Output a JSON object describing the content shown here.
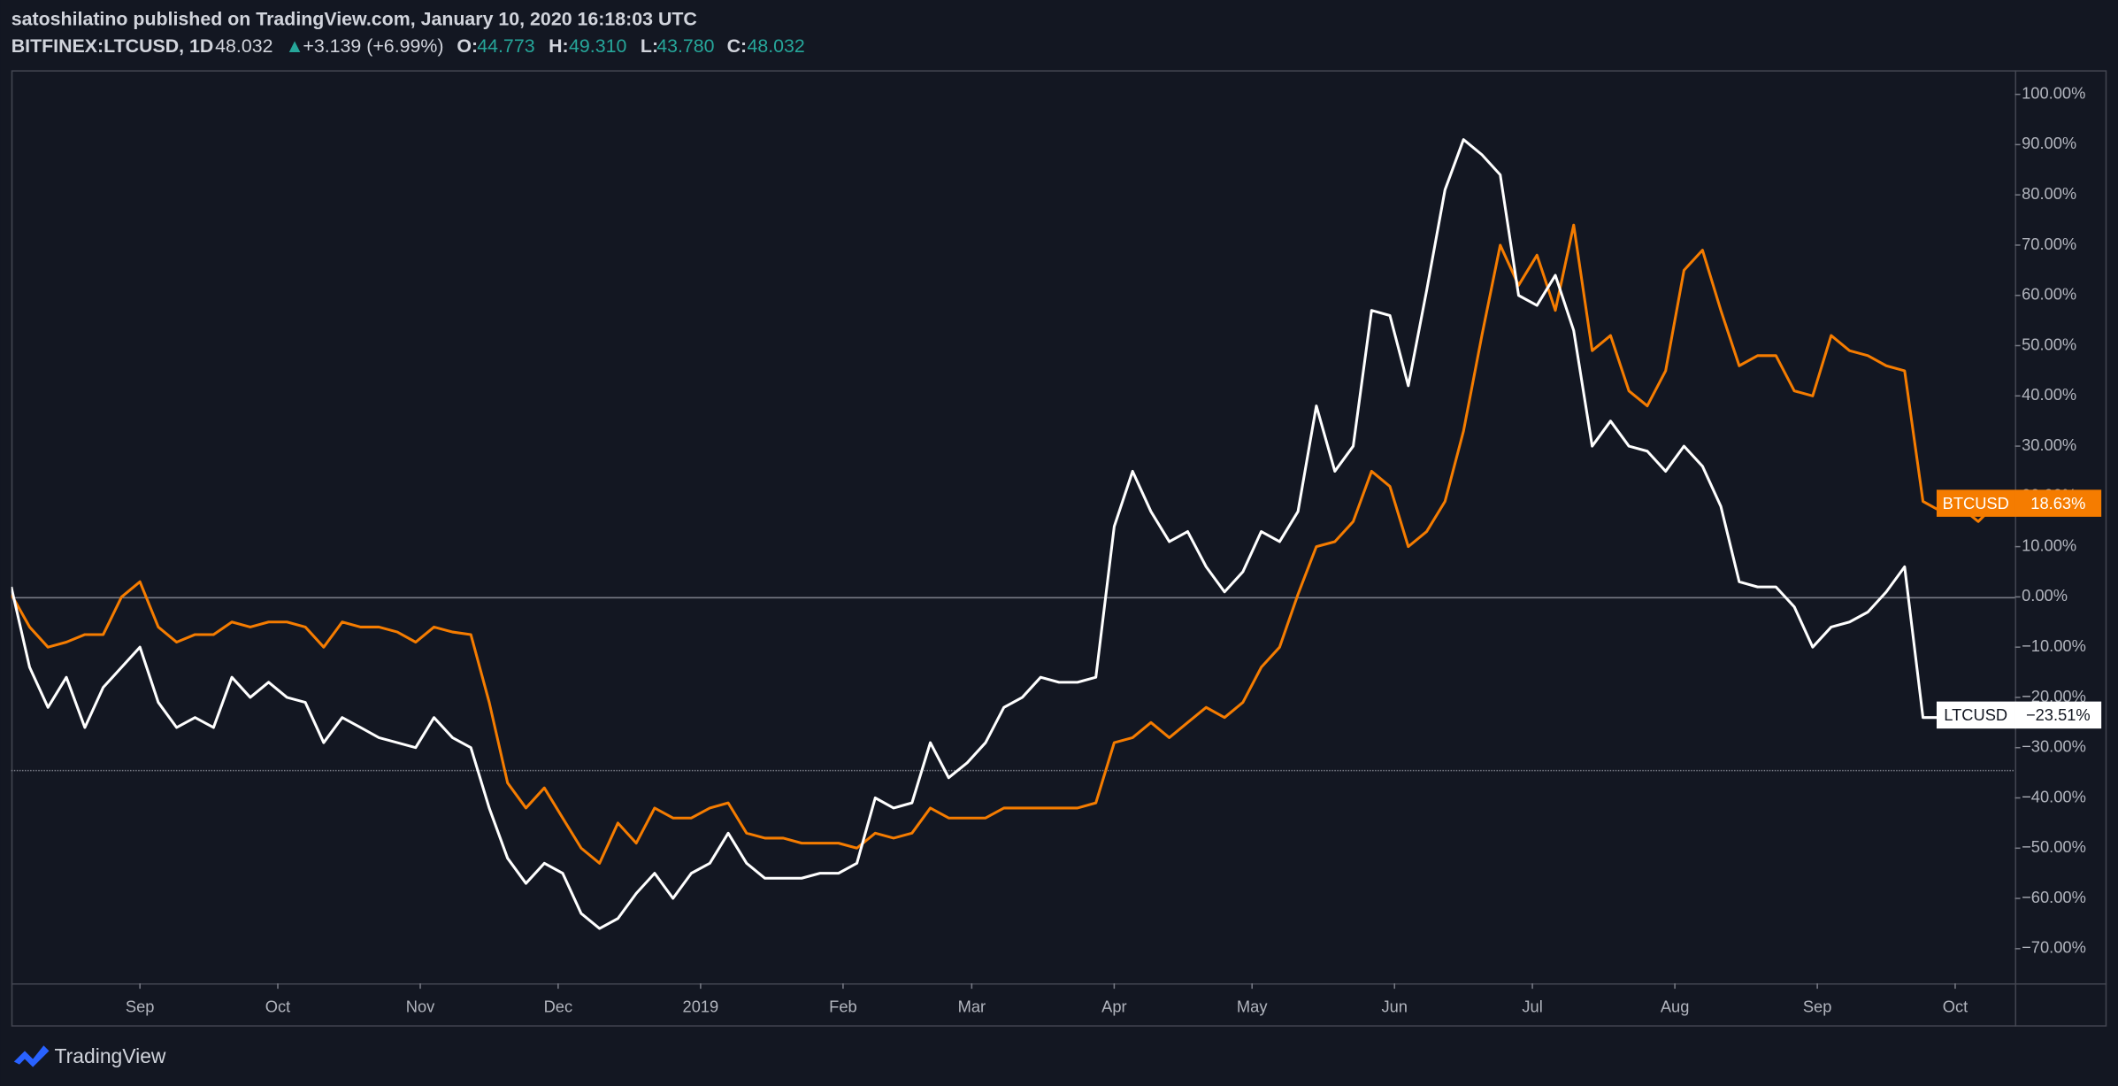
{
  "header": {
    "publisher": "satoshilatino published on TradingView.com, January 10, 2020 16:18:03 UTC",
    "symbol": "BITFINEX:LTCUSD, 1D",
    "last": "48.032",
    "arrow": "▲",
    "change": "+3.139 (+6.99%)",
    "ohlc": [
      {
        "label": "O:",
        "value": "44.773"
      },
      {
        "label": "H:",
        "value": "49.310"
      },
      {
        "label": "L:",
        "value": "43.780"
      },
      {
        "label": "C:",
        "value": "48.032"
      }
    ]
  },
  "footer": {
    "logo": "TradingView"
  },
  "chart_data": {
    "type": "line",
    "x": [
      -28,
      -24,
      -20,
      -16,
      -12,
      -8,
      -4,
      0,
      4,
      8,
      12,
      16,
      20,
      24,
      28,
      32,
      36,
      40,
      44,
      48,
      52,
      56,
      60,
      64,
      68,
      72,
      76,
      80,
      84,
      88,
      92,
      96,
      100,
      104,
      108,
      112,
      116,
      120,
      124,
      128,
      132,
      136,
      140,
      144,
      148,
      152,
      156,
      160,
      164,
      168,
      172,
      176,
      180,
      184,
      188,
      192,
      196,
      200,
      204,
      208,
      212,
      216,
      220,
      224,
      228,
      232,
      236,
      240,
      244,
      248,
      252,
      256,
      260,
      264,
      268,
      272,
      276,
      280,
      284,
      288,
      292,
      296,
      300,
      304,
      308,
      312,
      316,
      320,
      324,
      328,
      332,
      336,
      340,
      344,
      348,
      352,
      356,
      360,
      364,
      368,
      372,
      376,
      380,
      384,
      388,
      392,
      396,
      400,
      404
    ],
    "xlim": [
      -28,
      408
    ],
    "xticks": [
      {
        "value": 0,
        "label": "Sep"
      },
      {
        "value": 30,
        "label": "Oct"
      },
      {
        "value": 61,
        "label": "Nov"
      },
      {
        "value": 91,
        "label": "Dec"
      },
      {
        "value": 122,
        "label": "2019"
      },
      {
        "value": 153,
        "label": "Feb"
      },
      {
        "value": 181,
        "label": "Mar"
      },
      {
        "value": 212,
        "label": "Apr"
      },
      {
        "value": 242,
        "label": "May"
      },
      {
        "value": 273,
        "label": "Jun"
      },
      {
        "value": 303,
        "label": "Jul"
      },
      {
        "value": 334,
        "label": "Aug"
      },
      {
        "value": 365,
        "label": "Sep"
      },
      {
        "value": 395,
        "label": "Oct"
      }
    ],
    "ylim": [
      -76.9,
      104.8
    ],
    "yticks": [
      {
        "value": 100,
        "label": "100.00%"
      },
      {
        "value": 90,
        "label": "90.00%"
      },
      {
        "value": 80,
        "label": "80.00%"
      },
      {
        "value": 70,
        "label": "70.00%"
      },
      {
        "value": 60,
        "label": "60.00%"
      },
      {
        "value": 50,
        "label": "50.00%"
      },
      {
        "value": 40,
        "label": "40.00%"
      },
      {
        "value": 30,
        "label": "30.00%"
      },
      {
        "value": 20,
        "label": "20.00%"
      },
      {
        "value": 10,
        "label": "10.00%"
      },
      {
        "value": 0,
        "label": "0.00%"
      },
      {
        "value": -10,
        "label": "−10.00%"
      },
      {
        "value": -20,
        "label": "−20.00%"
      },
      {
        "value": -30,
        "label": "−30.00%"
      },
      {
        "value": -40,
        "label": "−40.00%"
      },
      {
        "value": -50,
        "label": "−50.00%"
      },
      {
        "value": -60,
        "label": "−60.00%"
      },
      {
        "value": -70,
        "label": "−70.00%"
      }
    ],
    "hlines": [
      {
        "value": 0,
        "style": "solid"
      },
      {
        "value": -34.4,
        "style": "dotted"
      }
    ],
    "series": [
      {
        "name": "BTCUSD",
        "color": "#f57c00",
        "last_label": "18.63%",
        "values": [
          0.5,
          -6,
          -10,
          -9,
          -7.5,
          -7.5,
          0,
          3,
          -6,
          -9,
          -7.5,
          -7.5,
          -5,
          -6,
          -5,
          -5,
          -6,
          -10,
          -5,
          -6,
          -6,
          -7,
          -9,
          -6,
          -7,
          -7.5,
          -21,
          -37,
          -42,
          -38,
          -44,
          -50,
          -53,
          -45,
          -49,
          -42,
          -44,
          -44,
          -42,
          -41,
          -47,
          -48,
          -48,
          -49,
          -49,
          -49,
          -50,
          -47,
          -48,
          -47,
          -42,
          -44,
          -44,
          -44,
          -42,
          -42,
          -42,
          -42,
          -42,
          -41,
          -29,
          -28,
          -25,
          -28,
          -25,
          -22,
          -24,
          -21,
          -14,
          -10,
          0.5,
          10,
          11,
          15,
          25,
          22,
          10,
          13,
          19,
          33,
          52,
          70,
          62,
          68,
          57,
          74,
          49,
          52,
          41,
          38,
          45,
          65,
          69,
          57,
          46,
          48,
          48,
          41,
          40,
          52,
          49,
          48,
          46,
          45,
          19,
          17,
          18,
          15,
          18.63
        ]
      },
      {
        "name": "LTCUSD",
        "color": "#ffffff",
        "last_label": "−23.51%",
        "values": [
          2,
          -14,
          -22,
          -16,
          -26,
          -18,
          -14,
          -10,
          -21,
          -26,
          -24,
          -26,
          -16,
          -20,
          -17,
          -20,
          -21,
          -29,
          -24,
          -26,
          -28,
          -29,
          -30,
          -24,
          -28,
          -30,
          -42,
          -52,
          -57,
          -53,
          -55,
          -63,
          -66,
          -64,
          -59,
          -55,
          -60,
          -55,
          -53,
          -47,
          -53,
          -56,
          -56,
          -56,
          -55,
          -55,
          -53,
          -40,
          -42,
          -41,
          -29,
          -36,
          -33,
          -29,
          -22,
          -20,
          -16,
          -17,
          -17,
          -16,
          14,
          25,
          17,
          11,
          13,
          6,
          1,
          5,
          13,
          11,
          17,
          38,
          25,
          30,
          57,
          56,
          42,
          61,
          81,
          91,
          88,
          84,
          60,
          58,
          64,
          53,
          30,
          35,
          30,
          29,
          25,
          30,
          26,
          18,
          3,
          2,
          2,
          -2,
          -10,
          -6,
          -5,
          -3,
          1,
          6,
          -24,
          -24,
          -24,
          -22,
          -23.51
        ]
      }
    ]
  }
}
